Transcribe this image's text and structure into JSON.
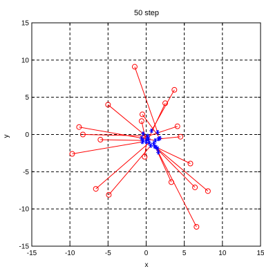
{
  "chart_data": {
    "type": "scatter",
    "title": "50 step",
    "xlabel": "x",
    "ylabel": "y",
    "xlim": [
      -15,
      15
    ],
    "ylim": [
      -15,
      15
    ],
    "xticks": [
      -15,
      -10,
      -5,
      0,
      5,
      10,
      15
    ],
    "yticks": [
      -15,
      -10,
      -5,
      0,
      5,
      10,
      15
    ],
    "grid": true,
    "grid_style": "dashed",
    "colors": {
      "lines": "#ff0000",
      "start_markers": "#ff0000",
      "end_markers": "#0000ff",
      "axes": "#000000"
    },
    "series": [
      {
        "role": "start points",
        "marker": "o",
        "points": [
          [
            -1.5,
            9.1
          ],
          [
            3.7,
            6.0
          ],
          [
            2.5,
            4.2
          ],
          [
            -5.0,
            4.0
          ],
          [
            -0.5,
            2.7
          ],
          [
            -0.6,
            1.8
          ],
          [
            -8.8,
            1.0
          ],
          [
            4.1,
            1.1
          ],
          [
            -8.3,
            0.0
          ],
          [
            4.5,
            -0.3
          ],
          [
            -6.0,
            -0.7
          ],
          [
            -9.7,
            -2.6
          ],
          [
            -0.2,
            -3.0
          ],
          [
            5.8,
            -3.9
          ],
          [
            -6.6,
            -7.3
          ],
          [
            3.3,
            -6.4
          ],
          [
            6.4,
            -7.1
          ],
          [
            8.1,
            -7.6
          ],
          [
            -4.9,
            -8.1
          ],
          [
            6.6,
            -12.4
          ]
        ]
      },
      {
        "role": "positions at step 50",
        "marker": "*",
        "points": [
          [
            1.5,
            0.3
          ],
          [
            0.7,
            0.5
          ],
          [
            0.3,
            -0.6
          ],
          [
            -0.4,
            0.1
          ],
          [
            1.8,
            -0.5
          ],
          [
            0.0,
            -1.0
          ],
          [
            1.2,
            -0.8
          ],
          [
            -0.6,
            -0.5
          ],
          [
            0.2,
            -0.2
          ],
          [
            1.6,
            -0.6
          ],
          [
            -0.4,
            -0.8
          ],
          [
            -0.5,
            -1.0
          ],
          [
            0.1,
            -0.6
          ],
          [
            1.3,
            -1.7
          ],
          [
            0.4,
            -1.1
          ],
          [
            1.0,
            -1.2
          ],
          [
            1.1,
            -1.6
          ],
          [
            1.5,
            -1.9
          ],
          [
            0.6,
            -1.5
          ],
          [
            1.6,
            -2.4
          ]
        ]
      }
    ]
  }
}
